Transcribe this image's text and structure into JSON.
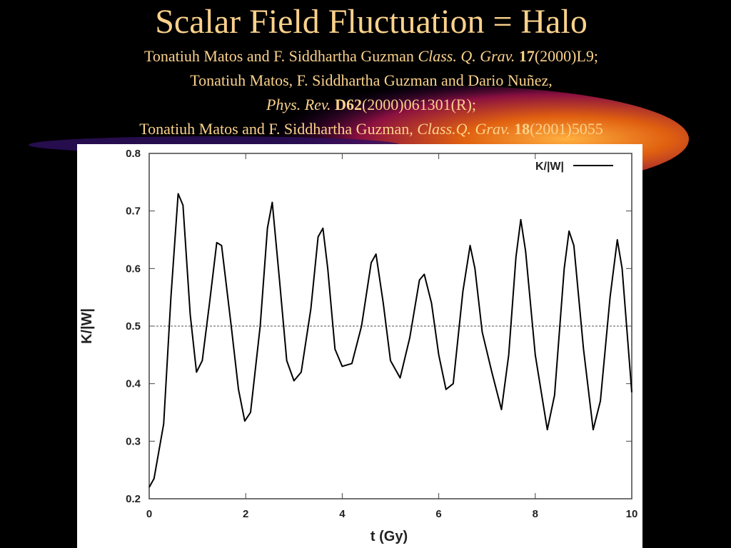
{
  "slide": {
    "title": "Scalar Field Fluctuation = Halo",
    "references": [
      [
        "Tonatiuh Matos and F. Siddhartha Guzman ",
        "Class. Q. Grav. ",
        "17",
        "(2000)L9;"
      ],
      [
        "Tonatiuh Matos, F. Siddhartha Guzman and Dario Nuñez,"
      ],
      [
        "Phys. Rev. ",
        "D62",
        "(2000)061301(R);"
      ],
      [
        "Tonatiuh Matos and F. Siddhartha Guzman, ",
        "Class.Q. Grav. ",
        "18",
        "(2001)5055"
      ]
    ]
  },
  "chart_data": {
    "type": "line",
    "x_label": "t (Gy)",
    "y_label": "K/|W|",
    "x": [
      0,
      0.1,
      0.3,
      0.45,
      0.6,
      0.7,
      0.85,
      0.98,
      1.1,
      1.25,
      1.4,
      1.5,
      1.7,
      1.85,
      1.98,
      2.1,
      2.3,
      2.45,
      2.55,
      2.7,
      2.85,
      3.0,
      3.15,
      3.35,
      3.5,
      3.6,
      3.7,
      3.85,
      4.0,
      4.2,
      4.4,
      4.6,
      4.7,
      4.85,
      5.0,
      5.2,
      5.4,
      5.6,
      5.7,
      5.85,
      6.0,
      6.15,
      6.3,
      6.5,
      6.65,
      6.75,
      6.9,
      7.1,
      7.3,
      7.45,
      7.6,
      7.7,
      7.8,
      8.0,
      8.25,
      8.4,
      8.6,
      8.7,
      8.8,
      9.0,
      9.2,
      9.35,
      9.55,
      9.7,
      9.8,
      10
    ],
    "series": [
      {
        "name": "K/|W|",
        "color": "#000000",
        "values": [
          0.22,
          0.235,
          0.33,
          0.55,
          0.73,
          0.71,
          0.52,
          0.42,
          0.44,
          0.54,
          0.645,
          0.64,
          0.5,
          0.39,
          0.335,
          0.35,
          0.5,
          0.67,
          0.715,
          0.58,
          0.44,
          0.405,
          0.42,
          0.53,
          0.655,
          0.67,
          0.6,
          0.46,
          0.43,
          0.435,
          0.5,
          0.61,
          0.625,
          0.54,
          0.44,
          0.41,
          0.48,
          0.58,
          0.59,
          0.54,
          0.45,
          0.39,
          0.4,
          0.56,
          0.64,
          0.6,
          0.49,
          0.42,
          0.355,
          0.45,
          0.62,
          0.685,
          0.63,
          0.45,
          0.32,
          0.38,
          0.6,
          0.665,
          0.64,
          0.46,
          0.32,
          0.37,
          0.55,
          0.65,
          0.6,
          0.385
        ]
      }
    ],
    "xlim": [
      0,
      10
    ],
    "xticks": [
      0,
      2,
      4,
      6,
      8,
      10
    ],
    "ylim": [
      0.2,
      0.8
    ],
    "yticks": [
      0.2,
      0.3,
      0.4,
      0.5,
      0.6,
      0.7,
      0.8
    ],
    "reference_line": 0.5,
    "legend": "top-right"
  }
}
